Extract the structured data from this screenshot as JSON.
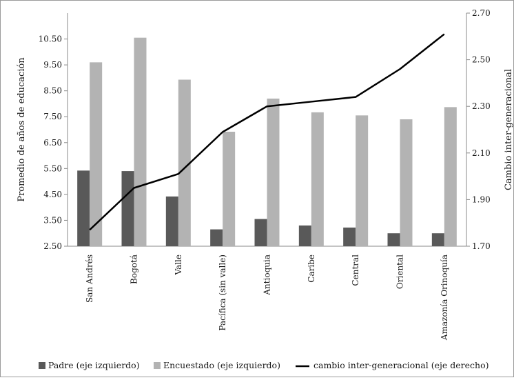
{
  "chart_data": {
    "type": "bar",
    "categories": [
      "San Andrés",
      "Bogotá",
      "Valle",
      "Pacífica (sin valle)",
      "Antioquia",
      "Caribe",
      "Central",
      "Oriental",
      "Amazonía Orinoquía"
    ],
    "series": [
      {
        "name": "Padre (eje izquierdo)",
        "type": "bar",
        "axis": "left",
        "color": "#595959",
        "values": [
          5.42,
          5.4,
          4.42,
          3.15,
          3.55,
          3.3,
          3.22,
          3.0,
          3.0
        ]
      },
      {
        "name": "Encuestado (eje izquierdo)",
        "type": "bar",
        "axis": "left",
        "color": "#b3b3b3",
        "values": [
          9.6,
          10.55,
          8.93,
          6.92,
          8.2,
          7.67,
          7.55,
          7.4,
          7.87
        ]
      },
      {
        "name": "cambio inter-generacional (eje derecho)",
        "type": "line",
        "axis": "right",
        "color": "#000000",
        "values": [
          1.77,
          1.95,
          2.01,
          2.19,
          2.3,
          2.32,
          2.34,
          2.46,
          2.61
        ]
      }
    ],
    "ylabel_left": "Promedio de años de educación",
    "ylabel_right": "Cambio inter-generacional",
    "ylim_left": [
      2.5,
      11.5
    ],
    "ylim_right": [
      1.7,
      2.7
    ],
    "yticks_left": [
      "2.50",
      "3.50",
      "4.50",
      "5.50",
      "6.50",
      "7.50",
      "8.50",
      "9.50",
      "10.50"
    ],
    "yticks_right": [
      "1.70",
      "1.90",
      "2.10",
      "2.30",
      "2.50",
      "2.70"
    ],
    "legend_position": "bottom",
    "grid": false
  }
}
